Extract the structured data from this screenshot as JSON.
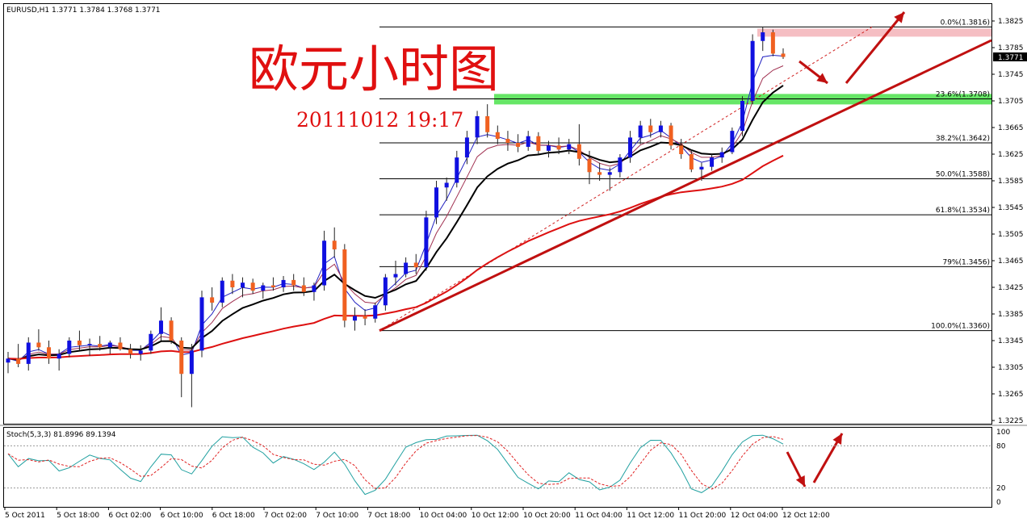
{
  "header": {
    "instrument": "EURUSD,H1  1.3771 1.3784 1.3768 1.3771",
    "stoch_label": "Stoch(5,3,3) 81.8996 89.1394"
  },
  "annotation": {
    "title": "欧元小时图",
    "datetime": "20111012 19:17"
  },
  "chart_data": {
    "type": "candlestick",
    "symbol": "EURUSD",
    "timeframe": "H1",
    "last_price": "1.3771",
    "y_ticks": [
      "1.3825",
      "1.3785",
      "1.3745",
      "1.3705",
      "1.3665",
      "1.3625",
      "1.3585",
      "1.3545",
      "1.3505",
      "1.3465",
      "1.3425",
      "1.3385",
      "1.3345",
      "1.3305",
      "1.3265",
      "1.3225"
    ],
    "ylim": [
      1.3215,
      1.3838
    ],
    "x_ticks": [
      "5 Oct 2011",
      "5 Oct 18:00",
      "6 Oct 02:00",
      "6 Oct 10:00",
      "6 Oct 18:00",
      "7 Oct 02:00",
      "7 Oct 10:00",
      "7 Oct 18:00",
      "10 Oct 04:00",
      "10 Oct 12:00",
      "10 Oct 20:00",
      "11 Oct 04:00",
      "11 Oct 12:00",
      "11 Oct 20:00",
      "12 Oct 04:00",
      "12 Oct 12:00"
    ],
    "fibonacci": [
      {
        "label": "0.0%(1.3816)",
        "price": 1.3816
      },
      {
        "label": "23.6%(1.3708)",
        "price": 1.3708
      },
      {
        "label": "38.2%(1.3642)",
        "price": 1.3642
      },
      {
        "label": "50.0%(1.3588)",
        "price": 1.3588
      },
      {
        "label": "61.8%(1.3534)",
        "price": 1.3534
      },
      {
        "label": "79%(1.3456)",
        "price": 1.3456
      },
      {
        "label": "100.0%(1.3360)",
        "price": 1.336
      }
    ],
    "resistance_zone": [
      1.3806,
      1.3816
    ],
    "support_zone": [
      1.3697,
      1.3713
    ],
    "stochastic": {
      "params": "5,3,3",
      "main": 81.8996,
      "signal": 89.1394,
      "levels": [
        "100",
        "80",
        "20",
        "0"
      ]
    },
    "candles": [
      [
        1.3312,
        1.3328,
        1.3296,
        1.3318
      ],
      [
        1.3318,
        1.334,
        1.3305,
        1.331
      ],
      [
        1.331,
        1.335,
        1.33,
        1.3342
      ],
      [
        1.3342,
        1.3362,
        1.333,
        1.3335
      ],
      [
        1.3335,
        1.3345,
        1.331,
        1.3318
      ],
      [
        1.3318,
        1.3332,
        1.33,
        1.3325
      ],
      [
        1.3325,
        1.335,
        1.332,
        1.3345
      ],
      [
        1.3345,
        1.336,
        1.333,
        1.3338
      ],
      [
        1.3338,
        1.3348,
        1.3322,
        1.334
      ],
      [
        1.334,
        1.3352,
        1.333,
        1.3335
      ],
      [
        1.3335,
        1.3345,
        1.3325,
        1.3342
      ],
      [
        1.3342,
        1.335,
        1.333,
        1.3332
      ],
      [
        1.3332,
        1.334,
        1.3318,
        1.3325
      ],
      [
        1.3325,
        1.3338,
        1.3315,
        1.333
      ],
      [
        1.333,
        1.336,
        1.3325,
        1.3355
      ],
      [
        1.3355,
        1.3395,
        1.3345,
        1.3375
      ],
      [
        1.3375,
        1.338,
        1.334,
        1.3345
      ],
      [
        1.3345,
        1.335,
        1.326,
        1.3295
      ],
      [
        1.3295,
        1.334,
        1.3245,
        1.333
      ],
      [
        1.333,
        1.342,
        1.332,
        1.341
      ],
      [
        1.341,
        1.3425,
        1.339,
        1.3402
      ],
      [
        1.3402,
        1.344,
        1.3395,
        1.3435
      ],
      [
        1.3435,
        1.3445,
        1.3415,
        1.3425
      ],
      [
        1.3425,
        1.344,
        1.341,
        1.3432
      ],
      [
        1.3432,
        1.3438,
        1.3415,
        1.342
      ],
      [
        1.342,
        1.3432,
        1.3408,
        1.3428
      ],
      [
        1.3428,
        1.344,
        1.342,
        1.3425
      ],
      [
        1.3425,
        1.3442,
        1.3418,
        1.3436
      ],
      [
        1.3436,
        1.3445,
        1.342,
        1.3428
      ],
      [
        1.3428,
        1.344,
        1.3412,
        1.3418
      ],
      [
        1.3418,
        1.3432,
        1.3405,
        1.3428
      ],
      [
        1.3428,
        1.351,
        1.342,
        1.3495
      ],
      [
        1.3495,
        1.3515,
        1.347,
        1.3482
      ],
      [
        1.3482,
        1.349,
        1.3365,
        1.3375
      ],
      [
        1.3375,
        1.3395,
        1.336,
        1.3382
      ],
      [
        1.3382,
        1.3392,
        1.3368,
        1.3378
      ],
      [
        1.3378,
        1.3402,
        1.3372,
        1.3398
      ],
      [
        1.3398,
        1.3445,
        1.339,
        1.344
      ],
      [
        1.344,
        1.3465,
        1.3428,
        1.3445
      ],
      [
        1.3445,
        1.347,
        1.344,
        1.3462
      ],
      [
        1.3462,
        1.3475,
        1.3445,
        1.3455
      ],
      [
        1.3455,
        1.354,
        1.345,
        1.353
      ],
      [
        1.353,
        1.3585,
        1.352,
        1.3575
      ],
      [
        1.3575,
        1.359,
        1.3555,
        1.3582
      ],
      [
        1.3582,
        1.363,
        1.3575,
        1.362
      ],
      [
        1.362,
        1.366,
        1.361,
        1.365
      ],
      [
        1.365,
        1.369,
        1.364,
        1.3682
      ],
      [
        1.3682,
        1.37,
        1.365,
        1.3658
      ],
      [
        1.3658,
        1.3668,
        1.364,
        1.3648
      ],
      [
        1.3648,
        1.366,
        1.363,
        1.3642
      ],
      [
        1.3642,
        1.3655,
        1.3628,
        1.3636
      ],
      [
        1.3636,
        1.366,
        1.363,
        1.3652
      ],
      [
        1.3652,
        1.3658,
        1.3625,
        1.363
      ],
      [
        1.363,
        1.3645,
        1.362,
        1.3638
      ],
      [
        1.3638,
        1.365,
        1.3625,
        1.3632
      ],
      [
        1.3632,
        1.3648,
        1.3625,
        1.364
      ],
      [
        1.364,
        1.367,
        1.3608,
        1.3618
      ],
      [
        1.3618,
        1.363,
        1.358,
        1.3598
      ],
      [
        1.3598,
        1.3612,
        1.3585,
        1.3594
      ],
      [
        1.3594,
        1.3605,
        1.357,
        1.3598
      ],
      [
        1.3598,
        1.3625,
        1.359,
        1.362
      ],
      [
        1.362,
        1.366,
        1.3612,
        1.365
      ],
      [
        1.365,
        1.3675,
        1.364,
        1.3668
      ],
      [
        1.3668,
        1.3678,
        1.365,
        1.3658
      ],
      [
        1.3658,
        1.3675,
        1.365,
        1.3668
      ],
      [
        1.3668,
        1.3672,
        1.3632,
        1.3638
      ],
      [
        1.3638,
        1.3648,
        1.3618,
        1.3625
      ],
      [
        1.3625,
        1.3632,
        1.3598,
        1.3602
      ],
      [
        1.3602,
        1.3612,
        1.3585,
        1.3606
      ],
      [
        1.3606,
        1.3625,
        1.36,
        1.362
      ],
      [
        1.362,
        1.3635,
        1.3612,
        1.3628
      ],
      [
        1.3628,
        1.3665,
        1.3625,
        1.366
      ],
      [
        1.366,
        1.3712,
        1.3652,
        1.3705
      ],
      [
        1.3705,
        1.3805,
        1.37,
        1.3795
      ],
      [
        1.3795,
        1.3816,
        1.378,
        1.3808
      ],
      [
        1.3808,
        1.3812,
        1.3772,
        1.3776
      ],
      [
        1.3776,
        1.3784,
        1.3768,
        1.3771
      ]
    ]
  }
}
